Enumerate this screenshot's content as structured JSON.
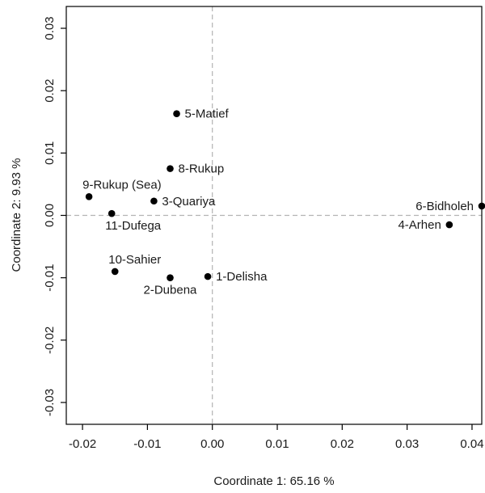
{
  "chart_data": {
    "type": "scatter",
    "title": "",
    "xlabel": "Coordinate 1: 65.16 %",
    "ylabel": "Coordinate 2: 9.93 %",
    "xlim": [
      -0.0225,
      0.0415
    ],
    "ylim": [
      -0.0335,
      0.0335
    ],
    "grid": false,
    "reference_lines": {
      "x": 0.0,
      "y": 0.0,
      "style": "dashed",
      "color": "#b3b3b3"
    },
    "x_ticks": [
      {
        "value": -0.02,
        "label": "-0.02"
      },
      {
        "value": -0.01,
        "label": "-0.01"
      },
      {
        "value": 0.0,
        "label": "0.00"
      },
      {
        "value": 0.01,
        "label": "0.01"
      },
      {
        "value": 0.02,
        "label": "0.02"
      },
      {
        "value": 0.03,
        "label": "0.03"
      },
      {
        "value": 0.04,
        "label": "0.04"
      }
    ],
    "y_ticks": [
      {
        "value": -0.03,
        "label": "-0.03"
      },
      {
        "value": -0.02,
        "label": "-0.02"
      },
      {
        "value": -0.01,
        "label": "-0.01"
      },
      {
        "value": 0.0,
        "label": "0.00"
      },
      {
        "value": 0.01,
        "label": "0.01"
      },
      {
        "value": 0.02,
        "label": "0.02"
      },
      {
        "value": 0.03,
        "label": "0.03"
      }
    ],
    "points": [
      {
        "label": "5-Matief",
        "x": -0.0055,
        "y": 0.0163,
        "anchor": "right"
      },
      {
        "label": "8-Rukup",
        "x": -0.0065,
        "y": 0.0075,
        "anchor": "right"
      },
      {
        "label": "9-Rukup (Sea)",
        "x": -0.019,
        "y": 0.003,
        "anchor": "above-right"
      },
      {
        "label": "3-Quariya",
        "x": -0.009,
        "y": 0.0023,
        "anchor": "right"
      },
      {
        "label": "11-Dufega",
        "x": -0.0155,
        "y": 0.0003,
        "anchor": "below-right"
      },
      {
        "label": "6-Bidholeh",
        "x": 0.0415,
        "y": 0.0015,
        "anchor": "left"
      },
      {
        "label": "4-Arhen",
        "x": 0.0365,
        "y": -0.0015,
        "anchor": "left"
      },
      {
        "label": "10-Sahier",
        "x": -0.015,
        "y": -0.009,
        "anchor": "above-right"
      },
      {
        "label": "2-Dubena",
        "x": -0.0065,
        "y": -0.01,
        "anchor": "below"
      },
      {
        "label": "1-Delisha",
        "x": -0.0007,
        "y": -0.0098,
        "anchor": "right"
      }
    ],
    "colors": {
      "points": "#000000",
      "axes": "#000000",
      "reference": "#b3b3b3"
    }
  }
}
